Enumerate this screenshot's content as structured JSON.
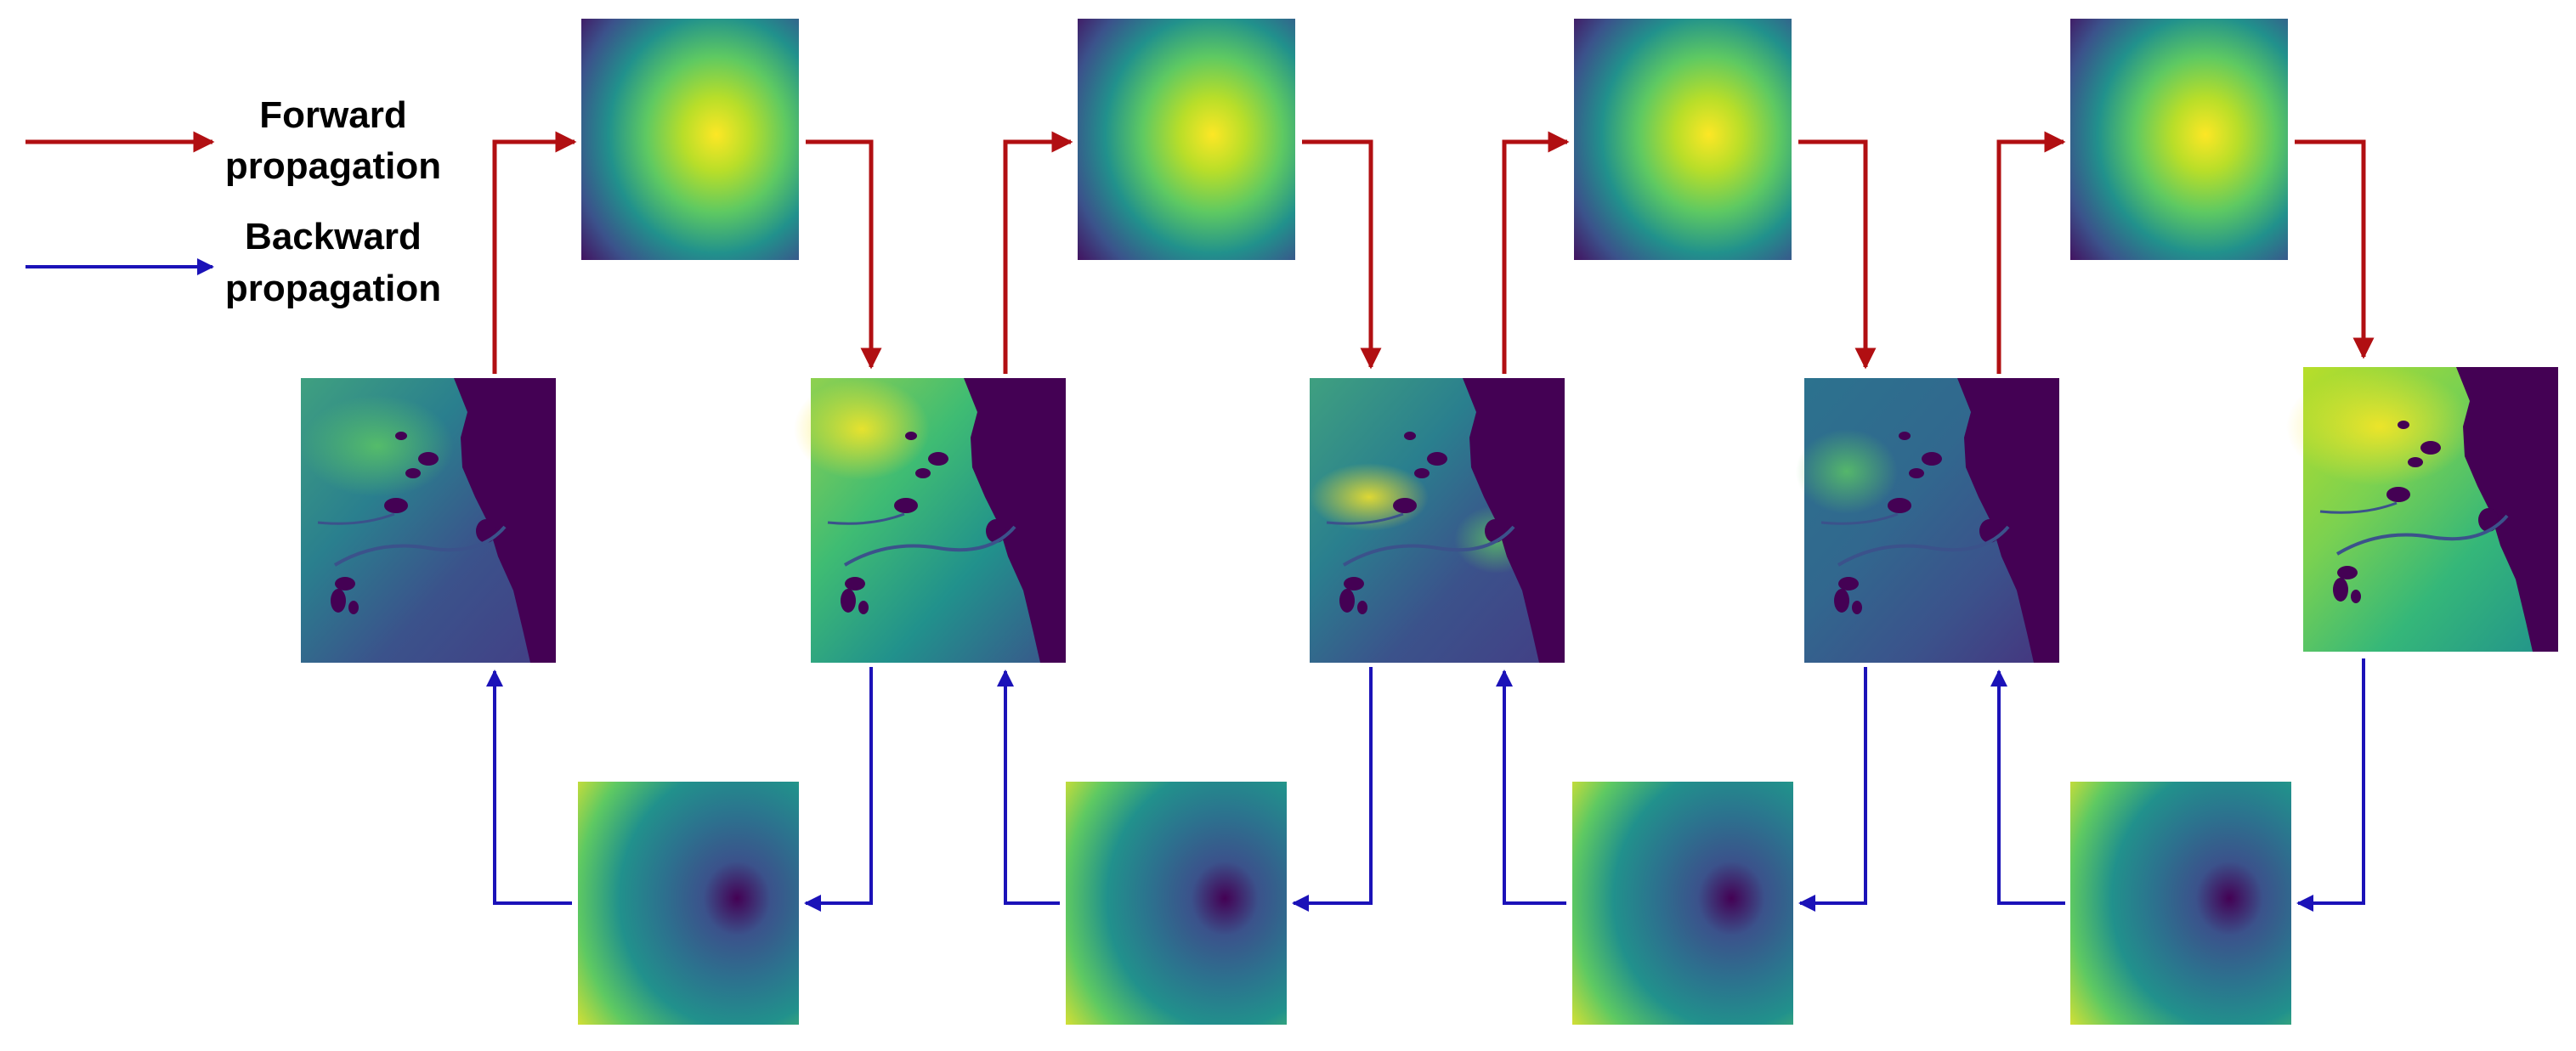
{
  "legend": {
    "forward_line1": "Forward",
    "forward_line2": "propagation",
    "backward_line1": "Backward",
    "backward_line2": "propagation"
  },
  "colors": {
    "forward_arrow": "#b10f12",
    "backward_arrow": "#1b12b8",
    "backward_arrow_alt": "#1f2cbc",
    "viridis_dark": "#440154",
    "viridis_blue": "#3b528b",
    "viridis_teal": "#21918c",
    "viridis_green": "#5ec962",
    "viridis_yellow": "#fde725"
  },
  "panels": {
    "top_kernels": 4,
    "middle_maps": 5,
    "bottom_kernels": 4
  }
}
